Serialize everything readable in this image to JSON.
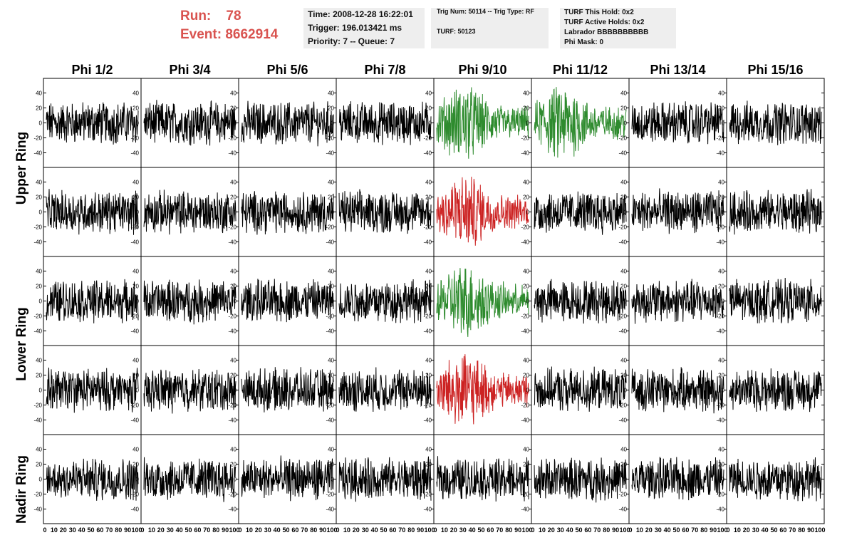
{
  "run_event": {
    "run_label": "Run:",
    "run_value": "78",
    "event_label": "Event:",
    "event_value": "8662914"
  },
  "time_box": {
    "time": "Time: 2008-12-28 16:22:01",
    "trigger": "Trigger: 196.013421 ms",
    "priority": "Priority: 7 -- Queue: 7"
  },
  "trig_box": {
    "trig": "Trig Num: 50114 -- Trig Type: RF",
    "turf": "TURF: 50123"
  },
  "turf_box": {
    "this_hold": "TURF This Hold: 0x2",
    "active_holds": "TURF Active Holds: 0x2",
    "labrador": "Labrador BBBBBBBBBB",
    "phi_mask": "Phi Mask: 0"
  },
  "columns": [
    "Phi 1/2",
    "Phi 3/4",
    "Phi 5/6",
    "Phi 7/8",
    "Phi 9/10",
    "Phi 11/12",
    "Phi 13/14",
    "Phi 15/16"
  ],
  "rings": [
    "Upper Ring",
    "Lower Ring",
    "Nadir Ring"
  ],
  "y_ticks": [
    40,
    20,
    0,
    -20,
    -40
  ],
  "x_ticks": [
    "0",
    "10",
    "20",
    "30",
    "40",
    "50",
    "60",
    "70",
    "80",
    "90",
    "100"
  ],
  "highlights": [
    {
      "row": 0,
      "col": 4,
      "color": "#2e8b2e"
    },
    {
      "row": 1,
      "col": 4,
      "color": "#cc2222"
    },
    {
      "row": 2,
      "col": 4,
      "color": "#2e8b2e"
    },
    {
      "row": 3,
      "col": 4,
      "color": "#cc2222"
    },
    {
      "row": 0,
      "col": 5,
      "color": "#2e8b2e"
    }
  ],
  "chart_data": {
    "type": "line",
    "panel_rows": 5,
    "panel_cols": 8,
    "ylim": [
      -50,
      50
    ],
    "xlim": [
      0,
      100
    ],
    "trace_color": "#000000"
  }
}
